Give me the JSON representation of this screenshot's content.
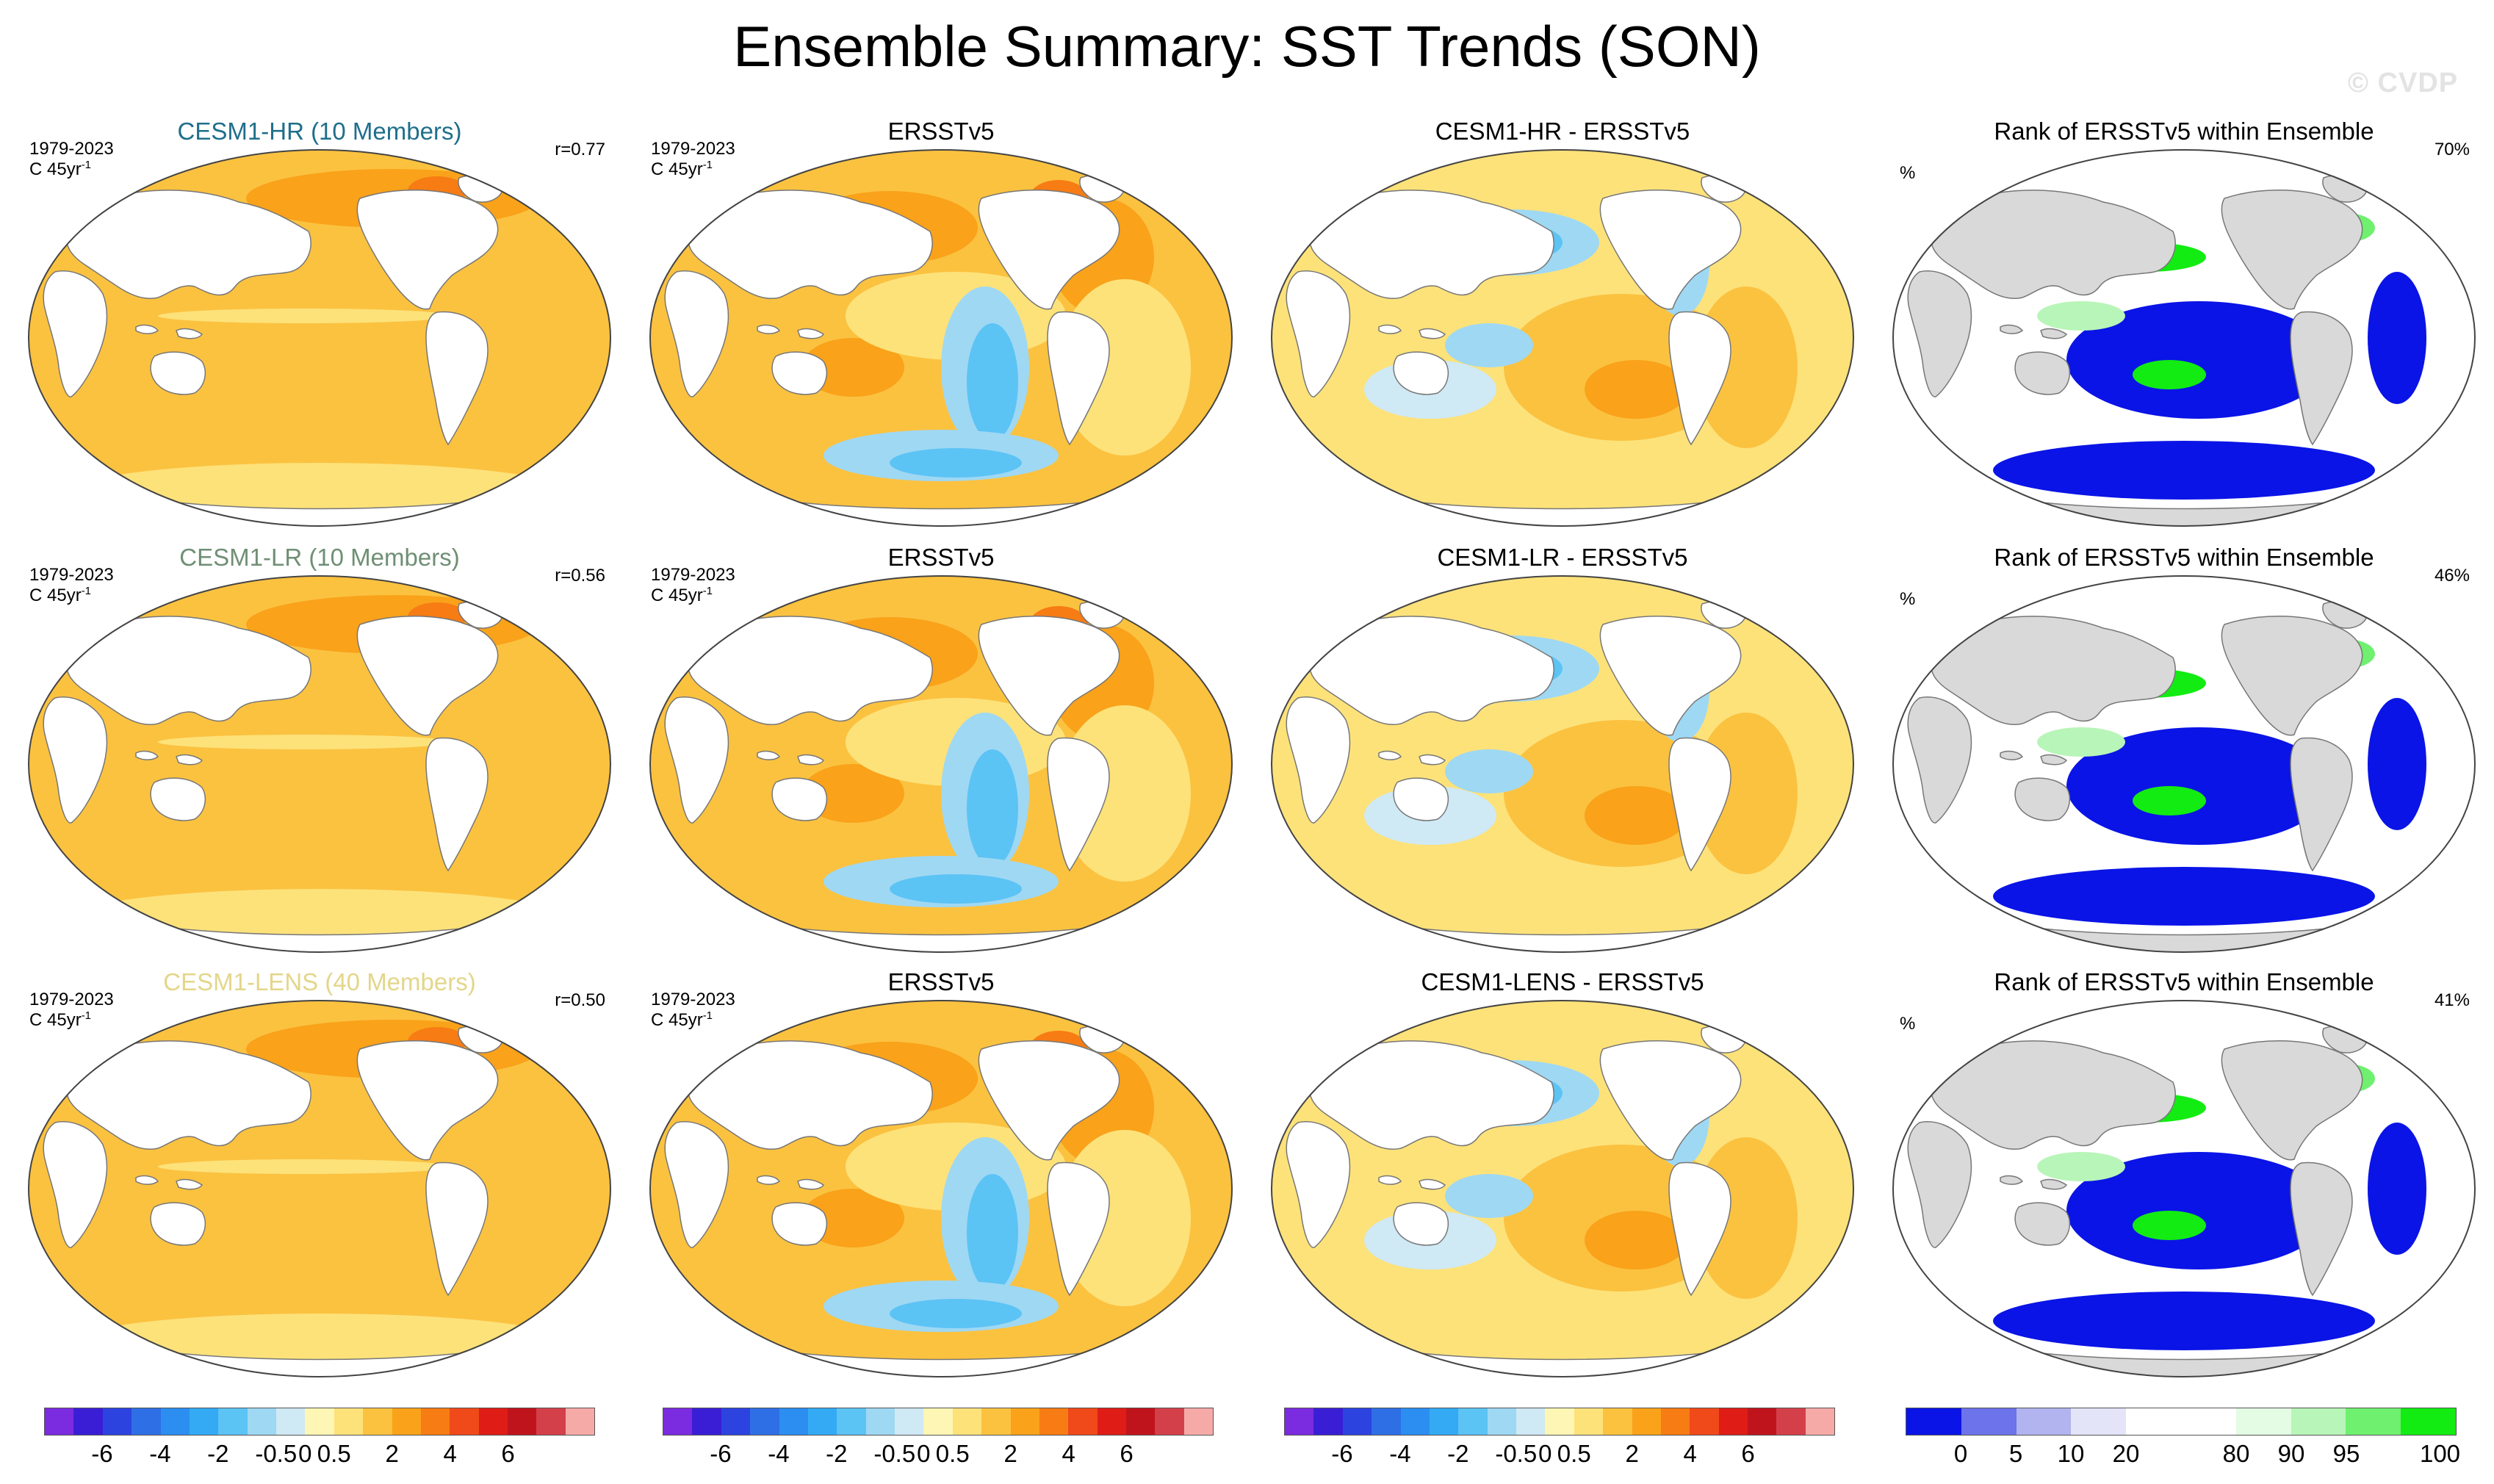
{
  "title": "Ensemble Summary: SST Trends (SON)",
  "watermark": "© CVDP",
  "rows": [
    {
      "model": {
        "title": "CESM1-HR (10 Members)",
        "title_color": "#1f6f8b",
        "years": "1979-2023",
        "units": "C 45yr",
        "units_exp": "-1",
        "r": "r=0.77"
      },
      "obs": {
        "title": "ERSSTv5",
        "years": "1979-2023",
        "units": "C 45yr",
        "units_exp": "-1"
      },
      "diff": {
        "title": "CESM1-HR - ERSSTv5"
      },
      "rank": {
        "title": "Rank of ERSSTv5 within Ensemble",
        "units": "%",
        "score": "70%"
      }
    },
    {
      "model": {
        "title": "CESM1-LR (10 Members)",
        "title_color": "#6f8f74",
        "years": "1979-2023",
        "units": "C 45yr",
        "units_exp": "-1",
        "r": "r=0.56"
      },
      "obs": {
        "title": "ERSSTv5",
        "years": "1979-2023",
        "units": "C 45yr",
        "units_exp": "-1"
      },
      "diff": {
        "title": "CESM1-LR - ERSSTv5"
      },
      "rank": {
        "title": "Rank of ERSSTv5 within Ensemble",
        "units": "%",
        "score": "46%"
      }
    },
    {
      "model": {
        "title": "CESM1-LENS (40 Members)",
        "title_color": "#e3d68a",
        "years": "1979-2023",
        "units": "C 45yr",
        "units_exp": "-1",
        "r": "r=0.50"
      },
      "obs": {
        "title": "ERSSTv5",
        "years": "1979-2023",
        "units": "C 45yr",
        "units_exp": "-1"
      },
      "diff": {
        "title": "CESM1-LENS - ERSSTv5"
      },
      "rank": {
        "title": "Rank of ERSSTv5 within Ensemble",
        "units": "%",
        "score": "41%"
      }
    }
  ],
  "colorbars": {
    "trend": {
      "colors": [
        "#7b2be0",
        "#3a1ed6",
        "#2c43e0",
        "#2f6fe6",
        "#2b8ef0",
        "#34aaf4",
        "#5cc3f5",
        "#9fd8f3",
        "#cfe9f5",
        "#fdf6b4",
        "#fde27a",
        "#fbc240",
        "#f9a21a",
        "#f77c14",
        "#f0491a",
        "#e01c16",
        "#c0141c",
        "#d4404a",
        "#f6aaa8"
      ],
      "labels": [
        "-6",
        "-4",
        "-2",
        "-0.5",
        "0",
        "0.5",
        "2",
        "4",
        "6"
      ]
    },
    "rank": {
      "colors": [
        "#0a14e6",
        "#6d73ea",
        "#b1b4ef",
        "#e3e4f8",
        "#ffffff",
        "#ffffff",
        "#e4fbe4",
        "#b8f5b8",
        "#6ff06f",
        "#12ec12"
      ],
      "labels": [
        "0",
        "5",
        "10",
        "20",
        "80",
        "90",
        "95",
        "100"
      ]
    }
  }
}
